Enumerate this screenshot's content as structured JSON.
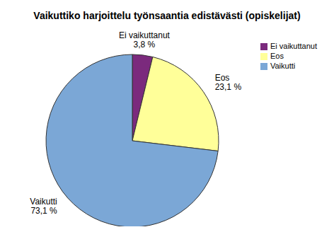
{
  "chart_data": {
    "type": "pie",
    "title": "Vaikuttiko harjoittelu työnsaantia edistävästi (opiskelijat)",
    "categories": [
      "Ei vaikuttanut",
      "Eos",
      "Vaikutti"
    ],
    "values": [
      3.8,
      23.1,
      73.1
    ],
    "value_labels": [
      "3,8 %",
      "23,1 %",
      "73,1 %"
    ],
    "colors": [
      "#7b2a7d",
      "#ffff99",
      "#7ba7d6"
    ],
    "legend": "upper right"
  }
}
